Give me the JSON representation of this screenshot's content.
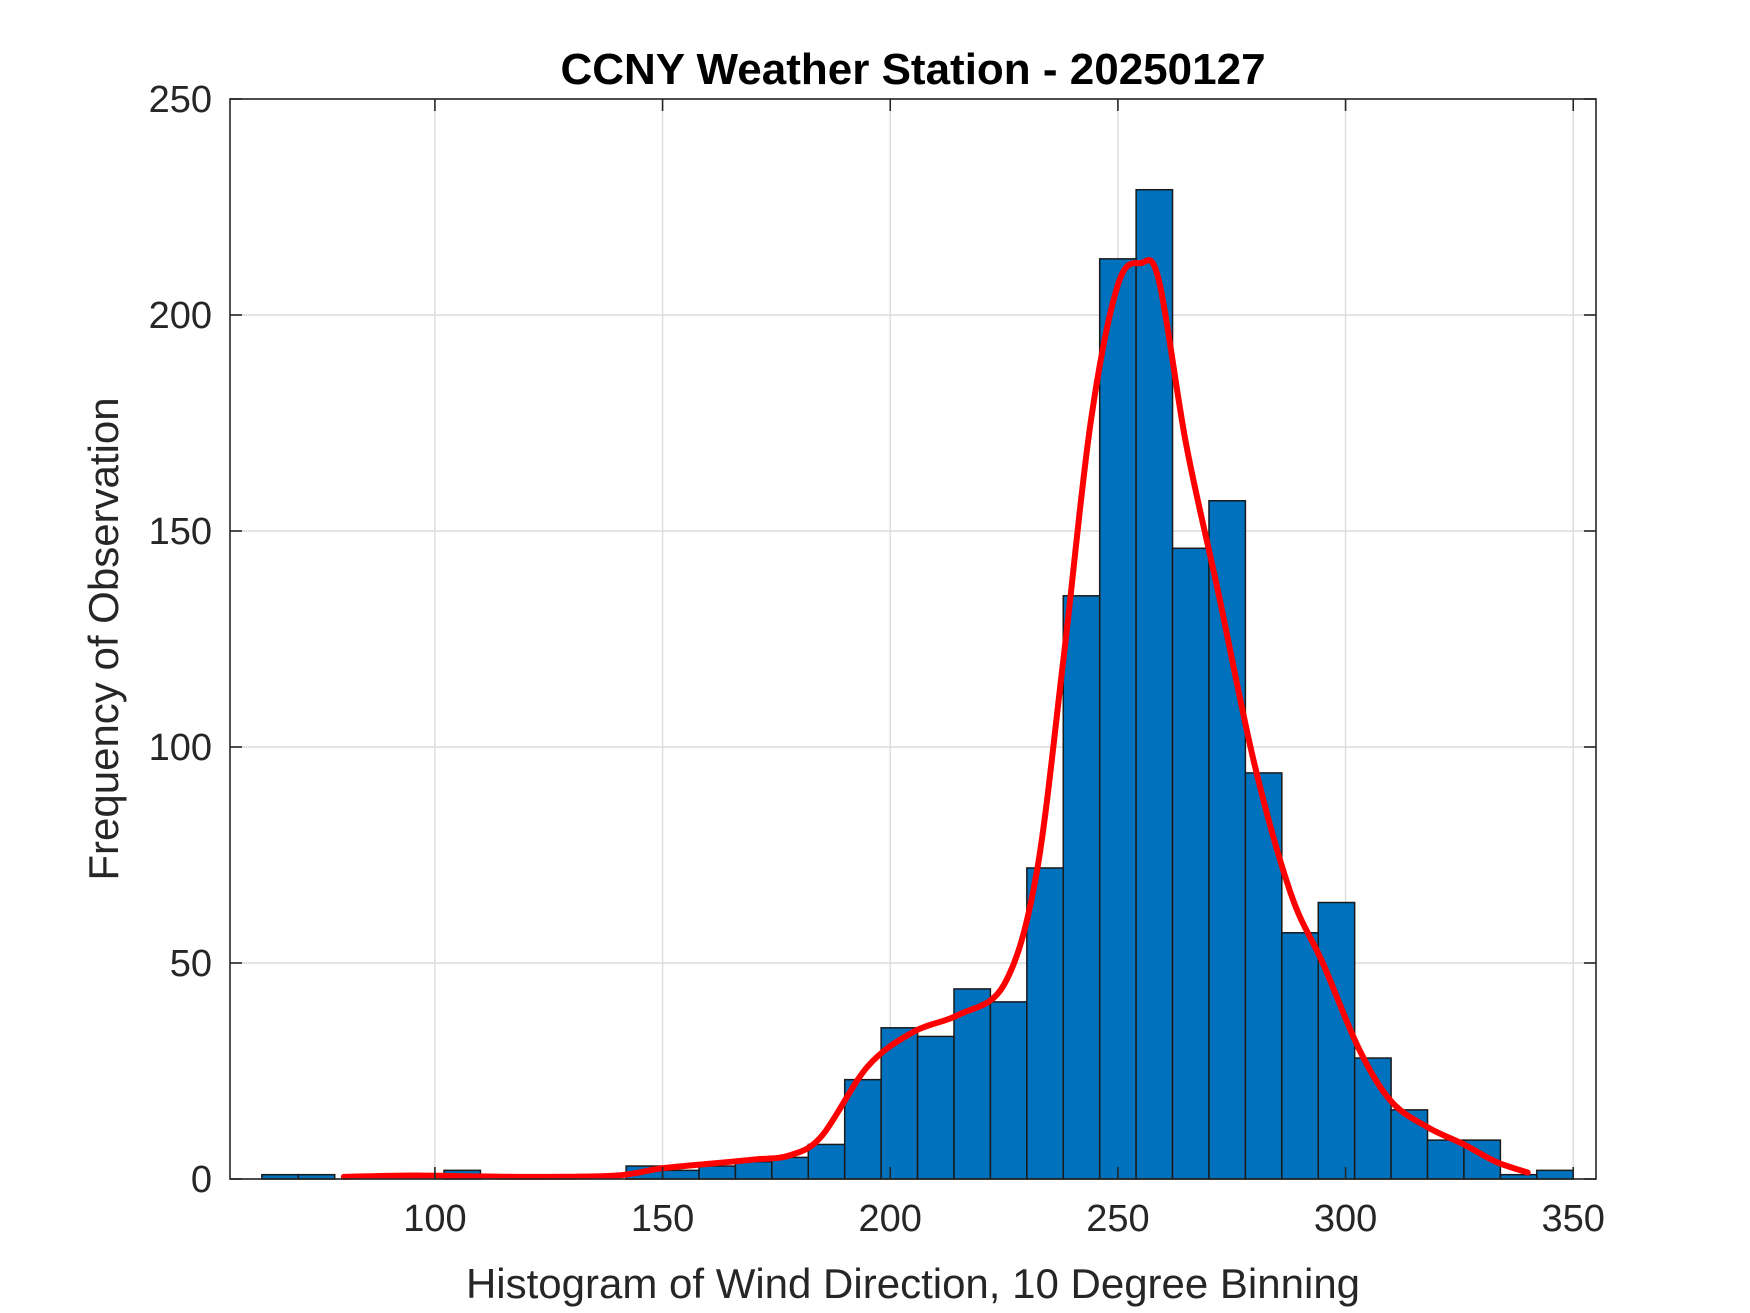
{
  "chart_data": {
    "type": "bar",
    "title": "CCNY Weather Station - 20250127",
    "xlabel": "Histogram of Wind Direction, 10 Degree Binning",
    "ylabel": "Frequency of Observation",
    "xlim": [
      55,
      355
    ],
    "ylim": [
      0,
      250
    ],
    "xticks": [
      100,
      150,
      200,
      250,
      300,
      350
    ],
    "yticks": [
      0,
      50,
      100,
      150,
      200,
      250
    ],
    "grid": true,
    "bin_width": 8,
    "bins": [
      {
        "left": 62,
        "value": 1
      },
      {
        "left": 70,
        "value": 1
      },
      {
        "left": 102,
        "value": 2
      },
      {
        "left": 142,
        "value": 3
      },
      {
        "left": 150,
        "value": 2
      },
      {
        "left": 158,
        "value": 3
      },
      {
        "left": 166,
        "value": 4
      },
      {
        "left": 174,
        "value": 5
      },
      {
        "left": 182,
        "value": 8
      },
      {
        "left": 190,
        "value": 23
      },
      {
        "left": 198,
        "value": 35
      },
      {
        "left": 206,
        "value": 33
      },
      {
        "left": 214,
        "value": 44
      },
      {
        "left": 222,
        "value": 41
      },
      {
        "left": 230,
        "value": 72
      },
      {
        "left": 238,
        "value": 135
      },
      {
        "left": 246,
        "value": 213
      },
      {
        "left": 254,
        "value": 229
      },
      {
        "left": 262,
        "value": 146
      },
      {
        "left": 270,
        "value": 157
      },
      {
        "left": 278,
        "value": 94
      },
      {
        "left": 286,
        "value": 57
      },
      {
        "left": 294,
        "value": 64
      },
      {
        "left": 302,
        "value": 28
      },
      {
        "left": 310,
        "value": 16
      },
      {
        "left": 318,
        "value": 9
      },
      {
        "left": 326,
        "value": 9
      },
      {
        "left": 334,
        "value": 1
      },
      {
        "left": 342,
        "value": 2
      }
    ],
    "series": [
      {
        "type": "line",
        "x": [
          80,
          95,
          110,
          125,
          140,
          150,
          160,
          170,
          178,
          185,
          195,
          205,
          215,
          225,
          232,
          238,
          244,
          250,
          255,
          259,
          265,
          272,
          280,
          288,
          295,
          303,
          310,
          318,
          326,
          333,
          340
        ],
        "y": [
          0.5,
          0.8,
          0.6,
          0.5,
          0.8,
          2.5,
          3.5,
          4.5,
          5.5,
          10,
          26,
          34,
          38,
          45,
          70,
          120,
          175,
          207,
          212,
          208,
          170,
          136,
          96,
          66,
          50,
          30,
          18,
          12,
          8,
          4,
          1.5
        ]
      }
    ],
    "colors": {
      "bar_fill": "#0072BD",
      "bar_edge": "#1a1a1a",
      "curve": "#FF0000",
      "grid": "#dcdcdc",
      "axis": "#262626"
    }
  }
}
